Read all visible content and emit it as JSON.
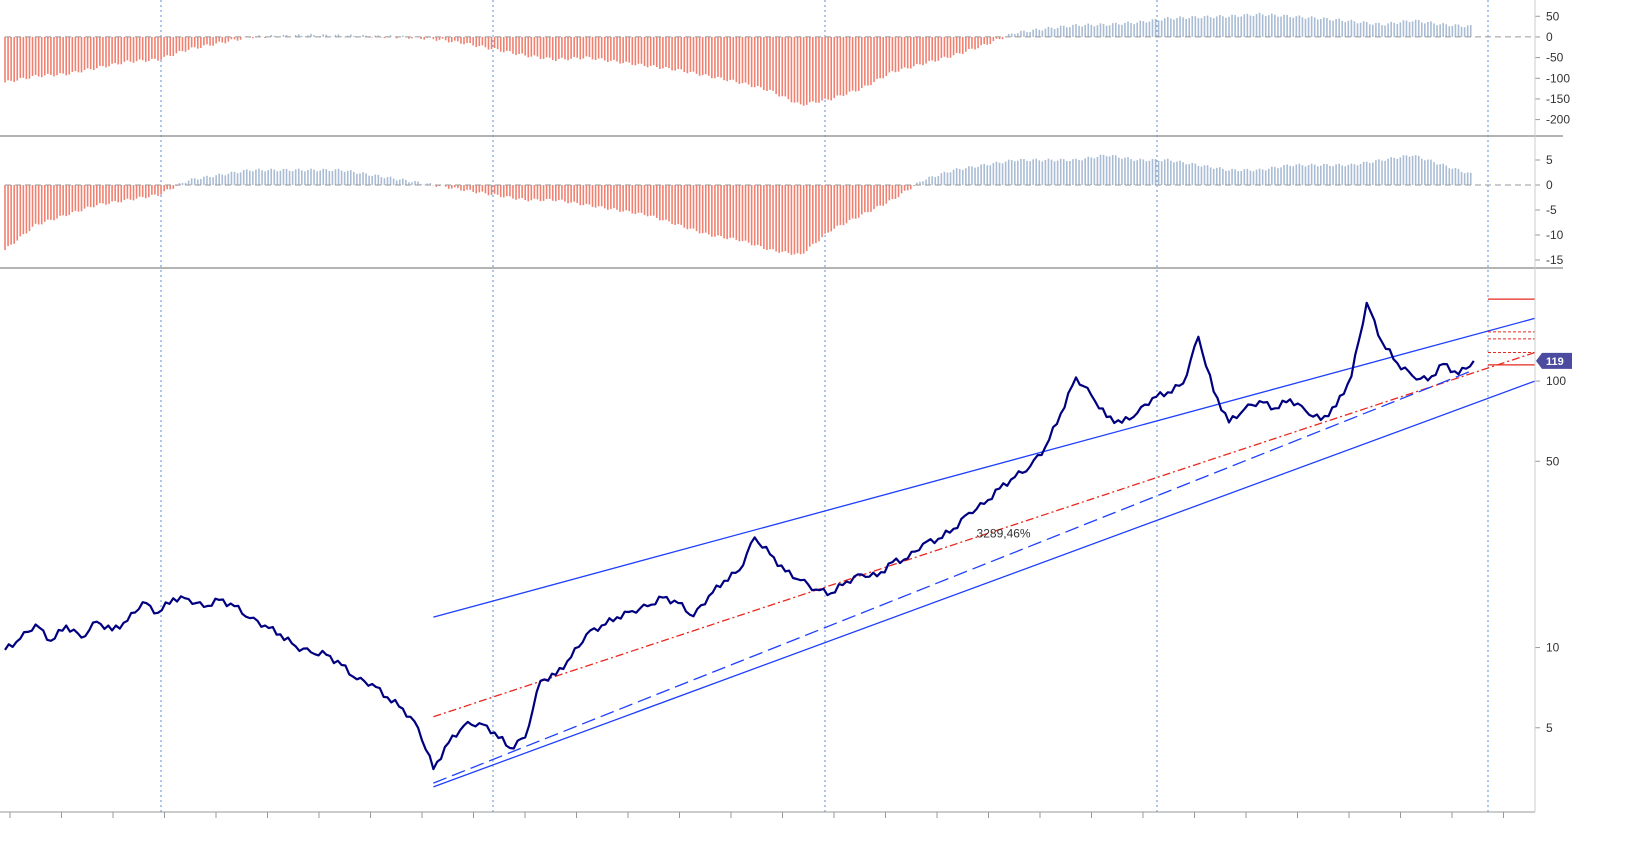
{
  "colors": {
    "price_line": "#000080",
    "channel": "#1f3fff",
    "positive_bar": "#a9bcd4",
    "negative_bar": "#f08070",
    "regression_mid": "#e8281e",
    "level_line": "#e8281e",
    "badge": "#4b4ba0",
    "grid_vertical": "#5b8fd6",
    "panel_border": "#888888"
  },
  "regression_label": "3289,46%",
  "price_badge": "119",
  "chart_data": [
    {
      "panel": "oscillator-1",
      "type": "bar",
      "ylim": [
        -230,
        70
      ],
      "yticks": [
        50,
        0,
        -50,
        -100,
        -150,
        -200
      ],
      "ytick_labels": [
        "50",
        "0",
        "-50",
        "-100",
        "-150",
        "-200"
      ],
      "x": [
        0,
        2,
        4,
        6,
        8,
        10,
        12,
        14,
        16,
        18,
        20,
        22,
        24,
        26,
        28,
        30,
        32,
        34,
        36,
        38,
        40,
        42,
        44,
        46,
        48,
        50,
        52,
        54,
        56,
        58,
        60,
        62,
        64,
        66,
        68,
        70,
        72,
        74,
        76,
        78,
        80,
        82,
        84,
        86,
        88,
        90,
        92,
        94,
        96,
        98,
        100
      ],
      "values": [
        -110,
        -95,
        -90,
        -75,
        -60,
        -55,
        -30,
        -15,
        0,
        2,
        4,
        3,
        1,
        0,
        -5,
        -15,
        -30,
        -45,
        -55,
        -50,
        -60,
        -70,
        -80,
        -95,
        -110,
        -130,
        -165,
        -150,
        -125,
        -85,
        -65,
        -45,
        -20,
        10,
        20,
        28,
        30,
        35,
        45,
        48,
        50,
        55,
        50,
        45,
        38,
        30,
        40,
        30,
        25,
        55,
        42
      ],
      "grid": false
    },
    {
      "panel": "oscillator-2",
      "type": "bar",
      "ylim": [
        -16,
        7
      ],
      "yticks": [
        5,
        0,
        -5,
        -10,
        -15
      ],
      "ytick_labels": [
        "5",
        "0",
        "-5",
        "-10",
        "-15"
      ],
      "x": [
        0,
        2,
        4,
        6,
        8,
        10,
        12,
        14,
        16,
        18,
        20,
        22,
        24,
        26,
        28,
        30,
        32,
        34,
        36,
        38,
        40,
        42,
        44,
        46,
        48,
        50,
        52,
        54,
        56,
        58,
        60,
        62,
        64,
        66,
        68,
        70,
        72,
        74,
        76,
        78,
        80,
        82,
        84,
        86,
        88,
        90,
        92,
        94,
        96,
        98,
        100
      ],
      "values": [
        -13,
        -8,
        -6,
        -4,
        -3,
        -2,
        1,
        2,
        3,
        3,
        3,
        3,
        2,
        1,
        0,
        -1,
        -2,
        -3,
        -3,
        -4,
        -5,
        -6,
        -8,
        -10,
        -11,
        -13,
        -14,
        -9,
        -6,
        -3,
        1,
        3,
        4,
        5,
        5,
        5,
        6,
        5,
        5,
        4,
        3,
        3,
        4,
        4,
        4,
        5,
        6,
        4,
        2,
        2,
        -1
      ],
      "grid": false
    },
    {
      "panel": "price",
      "type": "line",
      "scale": "log",
      "ylim": [
        2.5,
        250
      ],
      "yticks": [
        100,
        50,
        10,
        5
      ],
      "ytick_labels": [
        "100",
        "50",
        "10",
        "5"
      ],
      "series": [
        {
          "x": [
            0,
            1,
            2,
            3,
            4,
            5,
            6,
            7,
            8,
            9,
            10,
            11,
            12,
            13,
            14,
            15,
            16,
            17,
            18,
            19,
            20,
            21,
            22,
            23,
            24,
            25,
            26,
            27,
            28,
            29,
            30,
            31,
            32,
            33,
            34,
            35,
            36,
            37,
            38,
            39,
            40,
            41,
            42,
            43,
            44,
            45,
            46,
            47,
            48,
            49,
            50,
            51,
            52,
            53,
            54,
            55,
            56,
            57,
            58,
            59,
            60,
            61,
            62,
            63,
            64,
            65,
            66,
            67,
            68,
            69,
            70,
            71,
            72,
            73,
            74,
            75,
            76,
            77,
            78,
            79,
            80,
            81,
            82,
            83,
            84,
            85,
            86,
            87,
            88,
            89,
            90,
            91,
            92,
            93,
            94,
            95,
            96
          ],
          "values": [
            9.8,
            10.8,
            12.2,
            10.6,
            12.1,
            10.9,
            12.5,
            11.6,
            12.6,
            14.8,
            13.5,
            15.3,
            15.2,
            14.2,
            15.1,
            14.3,
            12.9,
            12.1,
            11.2,
            10.1,
            9.6,
            9.4,
            8.6,
            7.6,
            7.3,
            6.5,
            5.9,
            5.0,
            3.5,
            4.4,
            5.1,
            5.2,
            4.8,
            4.2,
            4.6,
            7.5,
            7.9,
            9.2,
            11.2,
            12.1,
            13.0,
            13.7,
            14.3,
            15.4,
            14.7,
            13.1,
            15.6,
            17.8,
            19.5,
            25.9,
            22.4,
            19.3,
            17.9,
            16.5,
            16.0,
            17.7,
            18.8,
            18.5,
            20.9,
            21.6,
            24.5,
            25.6,
            27.9,
            32.0,
            34.6,
            39.5,
            43.6,
            47.8,
            56.6,
            75.4,
            103.2,
            88.6,
            73.3,
            69.8,
            75.8,
            86.4,
            90.7,
            97.9,
            146.6,
            91.2,
            69.9,
            78.4,
            84.1,
            79.0,
            85.4,
            77.5,
            71.4,
            80.5,
            104.1,
            196.6,
            140.1,
            116.8,
            104.5,
            100.6,
            115.9,
            106.0,
            119.0
          ]
        }
      ],
      "overlays": {
        "upper_channel": [
          [
            28,
            13
          ],
          [
            100,
            172
          ]
        ],
        "lower_channel": [
          [
            28,
            3.0
          ],
          [
            100,
            100
          ]
        ],
        "regression_mid": [
          [
            28,
            5.5
          ],
          [
            100,
            128
          ]
        ],
        "trend_dashed": [
          [
            28,
            3.1
          ],
          [
            96,
            110
          ]
        ],
        "level_solid": [
          203,
          115
        ],
        "level_dotted": [
          153,
          144,
          128
        ]
      },
      "grid": false
    }
  ]
}
